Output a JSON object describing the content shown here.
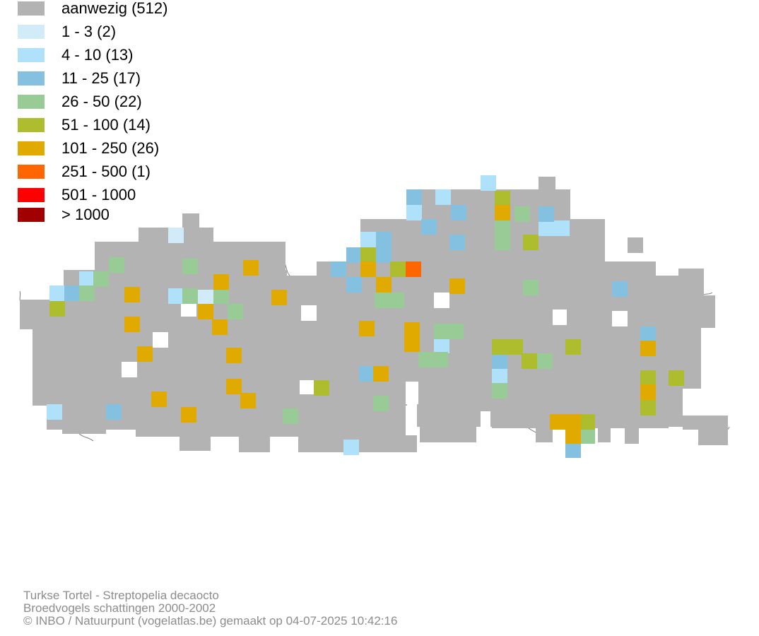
{
  "legend": [
    {
      "label": "aanwezig (512)",
      "color": "#b3b3b3"
    },
    {
      "label": "1 - 3 (2)",
      "color": "#d1ebf9"
    },
    {
      "label": "4 - 10 (13)",
      "color": "#b0e1fa"
    },
    {
      "label": "11 - 25 (17)",
      "color": "#84c0e0"
    },
    {
      "label": "26 - 50 (22)",
      "color": "#98cb95"
    },
    {
      "label": "51 - 100 (14)",
      "color": "#aebd2d"
    },
    {
      "label": "101 - 250 (26)",
      "color": "#e0aa00"
    },
    {
      "label": "251 - 500 (1)",
      "color": "#ff6600"
    },
    {
      "label": "501 - 1000",
      "color": "#ff0000"
    },
    {
      "label": "> 1000",
      "color": "#a00000"
    }
  ],
  "footer": {
    "species": "Turkse Tortel - Streptopelia decaocto",
    "survey": "Broedvogels schattingen 2000-2002",
    "credit": "© INBO / Natuurpunt (vogelatlas.be) gemaakt op 04-07-2025 10:42:16"
  }
}
